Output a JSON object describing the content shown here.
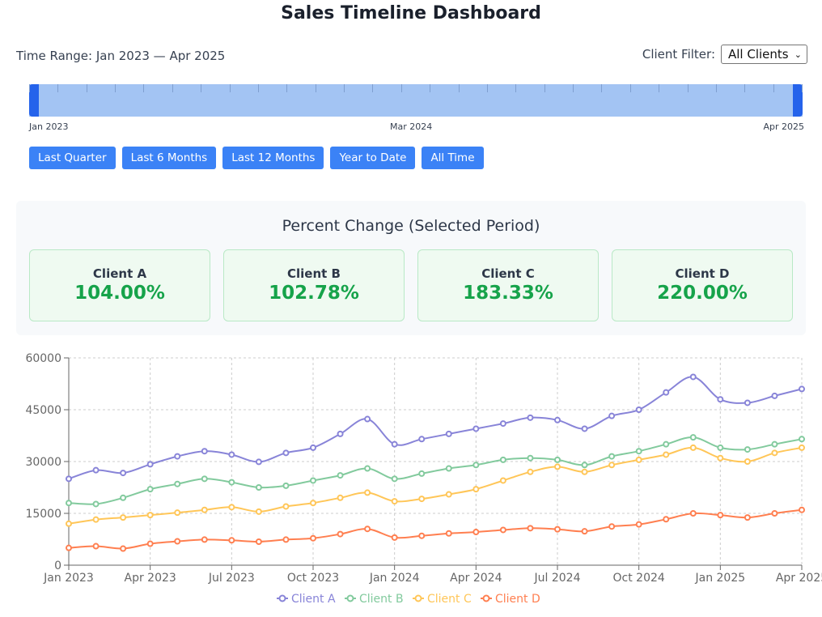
{
  "page": {
    "title": "Sales Timeline Dashboard"
  },
  "filters": {
    "time_range_label": "Time Range: Jan 2023 — Apr 2025",
    "client_filter_label": "Client Filter:",
    "client_filter_value": "All Clients"
  },
  "slider": {
    "labels": [
      "Jan 2023",
      "Mar 2024",
      "Apr 2025"
    ],
    "range_start": "Jan 2023",
    "range_end": "Apr 2025"
  },
  "presets": [
    "Last Quarter",
    "Last 6 Months",
    "Last 12 Months",
    "Year to Date",
    "All Time"
  ],
  "summary": {
    "title": "Percent Change (Selected Period)",
    "cards": [
      {
        "name": "Client A",
        "value": "104.00%"
      },
      {
        "name": "Client B",
        "value": "102.78%"
      },
      {
        "name": "Client C",
        "value": "183.33%"
      },
      {
        "name": "Client D",
        "value": "220.00%"
      }
    ]
  },
  "chart_data": {
    "type": "line",
    "x": [
      "Jan 2023",
      "Feb 2023",
      "Mar 2023",
      "Apr 2023",
      "May 2023",
      "Jun 2023",
      "Jul 2023",
      "Aug 2023",
      "Sep 2023",
      "Oct 2023",
      "Nov 2023",
      "Dec 2023",
      "Jan 2024",
      "Feb 2024",
      "Mar 2024",
      "Apr 2024",
      "May 2024",
      "Jun 2024",
      "Jul 2024",
      "Aug 2024",
      "Sep 2024",
      "Oct 2024",
      "Nov 2024",
      "Dec 2024",
      "Jan 2025",
      "Feb 2025",
      "Mar 2025",
      "Apr 2025"
    ],
    "x_tick_labels": [
      "Jan 2023",
      "Apr 2023",
      "Jul 2023",
      "Oct 2023",
      "Jan 2024",
      "Apr 2024",
      "Jul 2024",
      "Oct 2024",
      "Jan 2025",
      "Apr 2025"
    ],
    "y_ticks": [
      0,
      15000,
      30000,
      45000,
      60000
    ],
    "ylim": [
      0,
      60000
    ],
    "grid": true,
    "legend_position": "bottom",
    "series": [
      {
        "name": "Client A",
        "color": "#8884d8",
        "values": [
          25000,
          27500,
          26700,
          29200,
          31500,
          33000,
          32000,
          29900,
          32500,
          34000,
          38000,
          42300,
          35000,
          36500,
          38000,
          39500,
          41000,
          42700,
          42000,
          39500,
          43200,
          45000,
          50000,
          54500,
          48000,
          47000,
          49000,
          51000
        ]
      },
      {
        "name": "Client B",
        "color": "#82ca9d",
        "values": [
          18000,
          17700,
          19500,
          22000,
          23500,
          25000,
          24000,
          22500,
          23000,
          24500,
          26000,
          28000,
          25000,
          26500,
          28000,
          29000,
          30500,
          31000,
          30500,
          29000,
          31500,
          33000,
          35000,
          37000,
          34000,
          33500,
          35000,
          36500
        ]
      },
      {
        "name": "Client C",
        "color": "#ffc658",
        "values": [
          12000,
          13200,
          13800,
          14500,
          15200,
          16000,
          16800,
          15500,
          17000,
          18000,
          19500,
          21000,
          18500,
          19200,
          20500,
          22000,
          24500,
          27000,
          28500,
          27000,
          29000,
          30500,
          32000,
          34000,
          31000,
          30000,
          32500,
          34000
        ]
      },
      {
        "name": "Client D",
        "color": "#ff7f50",
        "values": [
          5000,
          5500,
          4800,
          6200,
          6900,
          7400,
          7200,
          6800,
          7400,
          7800,
          9000,
          10500,
          8000,
          8500,
          9200,
          9600,
          10200,
          10700,
          10400,
          9800,
          11200,
          11800,
          13300,
          15000,
          14500,
          13800,
          15000,
          16000
        ]
      }
    ]
  }
}
